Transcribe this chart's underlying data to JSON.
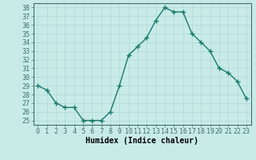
{
  "x": [
    0,
    1,
    2,
    3,
    4,
    5,
    6,
    7,
    8,
    9,
    10,
    11,
    12,
    13,
    14,
    15,
    16,
    17,
    18,
    19,
    20,
    21,
    22,
    23
  ],
  "y": [
    29,
    28.5,
    27,
    26.5,
    26.5,
    25,
    25,
    25,
    26,
    29,
    32.5,
    33.5,
    34.5,
    36.5,
    38,
    37.5,
    37.5,
    35,
    34,
    33,
    31,
    30.5,
    29.5,
    27.5
  ],
  "line_color": "#1a7a6e",
  "marker": "+",
  "marker_size": 4,
  "bg_color": "#c8ebe8",
  "grid_color": "#b0d8d4",
  "xlabel": "Humidex (Indice chaleur)",
  "xlabel_fontsize": 7,
  "tick_fontsize": 6,
  "ylim": [
    24.5,
    38.5
  ],
  "yticks": [
    25,
    26,
    27,
    28,
    29,
    30,
    31,
    32,
    33,
    34,
    35,
    36,
    37,
    38
  ],
  "xticks": [
    0,
    1,
    2,
    3,
    4,
    5,
    6,
    7,
    8,
    9,
    10,
    11,
    12,
    13,
    14,
    15,
    16,
    17,
    18,
    19,
    20,
    21,
    22,
    23
  ],
  "line_width": 1.0
}
